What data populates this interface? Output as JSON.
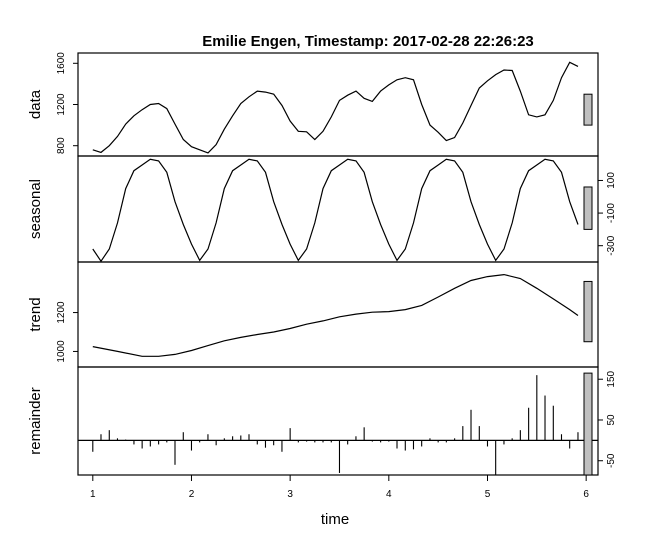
{
  "chart_data": {
    "type": "line",
    "title": "Emilie Engen, Timestamp: 2017-02-28 22:26:23",
    "xlabel": "time",
    "xlim": [
      0.85,
      6.12
    ],
    "x_ticks": [
      "1",
      "2",
      "3",
      "4",
      "5",
      "6"
    ],
    "x_tick_values": [
      1,
      2,
      3,
      4,
      5,
      6
    ],
    "panels": [
      {
        "name": "data",
        "ylabel": "data",
        "ylim": [
          700,
          1700
        ],
        "y_ticks": [
          "800",
          "1200",
          "1600"
        ],
        "y_tick_values": [
          800,
          1200,
          1600
        ],
        "axis_side": "left",
        "style": "line",
        "bar_range": [
          1000,
          1300
        ],
        "x": [
          1.0,
          1.083,
          1.167,
          1.25,
          1.333,
          1.417,
          1.5,
          1.583,
          1.667,
          1.75,
          1.833,
          1.917,
          2.0,
          2.083,
          2.167,
          2.25,
          2.333,
          2.417,
          2.5,
          2.583,
          2.667,
          2.75,
          2.833,
          2.917,
          3.0,
          3.083,
          3.167,
          3.25,
          3.333,
          3.417,
          3.5,
          3.583,
          3.667,
          3.75,
          3.833,
          3.917,
          4.0,
          4.083,
          4.167,
          4.25,
          4.333,
          4.417,
          4.5,
          4.583,
          4.667,
          4.75,
          4.833,
          4.917,
          5.0,
          5.083,
          5.167,
          5.25,
          5.333,
          5.417,
          5.5,
          5.583,
          5.667,
          5.75,
          5.833,
          5.917
        ],
        "values": [
          760,
          735,
          800,
          890,
          1010,
          1090,
          1150,
          1200,
          1210,
          1160,
          1010,
          860,
          790,
          760,
          730,
          810,
          960,
          1090,
          1210,
          1275,
          1330,
          1320,
          1300,
          1190,
          1040,
          940,
          935,
          860,
          940,
          1080,
          1240,
          1290,
          1330,
          1260,
          1230,
          1330,
          1390,
          1440,
          1460,
          1440,
          1200,
          1000,
          930,
          850,
          880,
          1020,
          1190,
          1360,
          1430,
          1490,
          1535,
          1530,
          1330,
          1100,
          1080,
          1100,
          1240,
          1460,
          1610,
          1570
        ]
      },
      {
        "name": "seasonal",
        "ylabel": "seasonal",
        "ylim": [
          -400,
          250
        ],
        "y_ticks": [
          "-300",
          "-100",
          "100"
        ],
        "y_tick_values": [
          -300,
          -100,
          100
        ],
        "axis_side": "right",
        "style": "line",
        "bar_range": [
          -200,
          60
        ],
        "x": [
          1.0,
          1.083,
          1.167,
          1.25,
          1.333,
          1.417,
          1.5,
          1.583,
          1.667,
          1.75,
          1.833,
          1.917,
          2.0,
          2.083,
          2.167,
          2.25,
          2.333,
          2.417,
          2.5,
          2.583,
          2.667,
          2.75,
          2.833,
          2.917,
          3.0,
          3.083,
          3.167,
          3.25,
          3.333,
          3.417,
          3.5,
          3.583,
          3.667,
          3.75,
          3.833,
          3.917,
          4.0,
          4.083,
          4.167,
          4.25,
          4.333,
          4.417,
          4.5,
          4.583,
          4.667,
          4.75,
          4.833,
          4.917,
          5.0,
          5.083,
          5.167,
          5.25,
          5.333,
          5.417,
          5.5,
          5.583,
          5.667,
          5.75,
          5.833,
          5.917
        ],
        "values": [
          -320,
          -395,
          -320,
          -160,
          50,
          160,
          195,
          230,
          220,
          150,
          -30,
          -170,
          -290,
          -390,
          -320,
          -160,
          50,
          160,
          195,
          230,
          220,
          150,
          -30,
          -170,
          -290,
          -390,
          -320,
          -160,
          50,
          160,
          195,
          230,
          220,
          150,
          -30,
          -170,
          -290,
          -390,
          -320,
          -160,
          50,
          160,
          195,
          230,
          220,
          150,
          -30,
          -170,
          -290,
          -390,
          -320,
          -160,
          50,
          160,
          195,
          230,
          220,
          150,
          -30,
          -170
        ]
      },
      {
        "name": "trend",
        "ylabel": "trend",
        "ylim": [
          920,
          1460
        ],
        "y_ticks": [
          "1000",
          "1200"
        ],
        "y_tick_values": [
          1000,
          1200
        ],
        "axis_side": "left",
        "style": "line",
        "bar_range": [
          1050,
          1360
        ],
        "x": [
          1.0,
          1.25,
          1.5,
          1.667,
          1.833,
          2.0,
          2.167,
          2.333,
          2.5,
          2.667,
          2.833,
          3.0,
          3.167,
          3.333,
          3.5,
          3.667,
          3.833,
          4.0,
          4.167,
          4.333,
          4.5,
          4.667,
          4.833,
          5.0,
          5.167,
          5.333,
          5.5,
          5.667,
          5.833,
          5.917
        ],
        "values": [
          1025,
          1000,
          975,
          975,
          985,
          1005,
          1030,
          1055,
          1072,
          1087,
          1100,
          1118,
          1140,
          1157,
          1178,
          1192,
          1202,
          1205,
          1215,
          1237,
          1280,
          1325,
          1365,
          1385,
          1395,
          1375,
          1325,
          1270,
          1215,
          1185
        ]
      },
      {
        "name": "remainder",
        "ylabel": "remainder",
        "ylim": [
          -85,
          180
        ],
        "y_ticks": [
          "-50",
          "50",
          "150"
        ],
        "y_tick_values": [
          -50,
          50,
          150
        ],
        "axis_side": "right",
        "style": "bars",
        "bar_range": [
          -85,
          165
        ],
        "x": [
          1.0,
          1.083,
          1.167,
          1.25,
          1.333,
          1.417,
          1.5,
          1.583,
          1.667,
          1.75,
          1.833,
          1.917,
          2.0,
          2.083,
          2.167,
          2.25,
          2.333,
          2.417,
          2.5,
          2.583,
          2.667,
          2.75,
          2.833,
          2.917,
          3.0,
          3.083,
          3.167,
          3.25,
          3.333,
          3.417,
          3.5,
          3.583,
          3.667,
          3.75,
          3.833,
          3.917,
          4.0,
          4.083,
          4.167,
          4.25,
          4.333,
          4.417,
          4.5,
          4.583,
          4.667,
          4.75,
          4.833,
          4.917,
          5.0,
          5.083,
          5.167,
          5.25,
          5.333,
          5.417,
          5.5,
          5.583,
          5.667,
          5.75,
          5.833,
          5.917
        ],
        "values": [
          -28,
          15,
          25,
          5,
          2,
          -10,
          -20,
          -15,
          -10,
          -5,
          -60,
          20,
          -25,
          -5,
          15,
          -12,
          5,
          10,
          12,
          15,
          -10,
          -18,
          -12,
          -28,
          30,
          -5,
          -3,
          -5,
          -5,
          -5,
          -80,
          -10,
          10,
          32,
          -3,
          -5,
          -3,
          -20,
          -25,
          -22,
          -15,
          5,
          -5,
          -5,
          5,
          35,
          75,
          35,
          -15,
          -85,
          -10,
          5,
          25,
          80,
          160,
          110,
          85,
          15,
          -20,
          20
        ]
      }
    ]
  }
}
